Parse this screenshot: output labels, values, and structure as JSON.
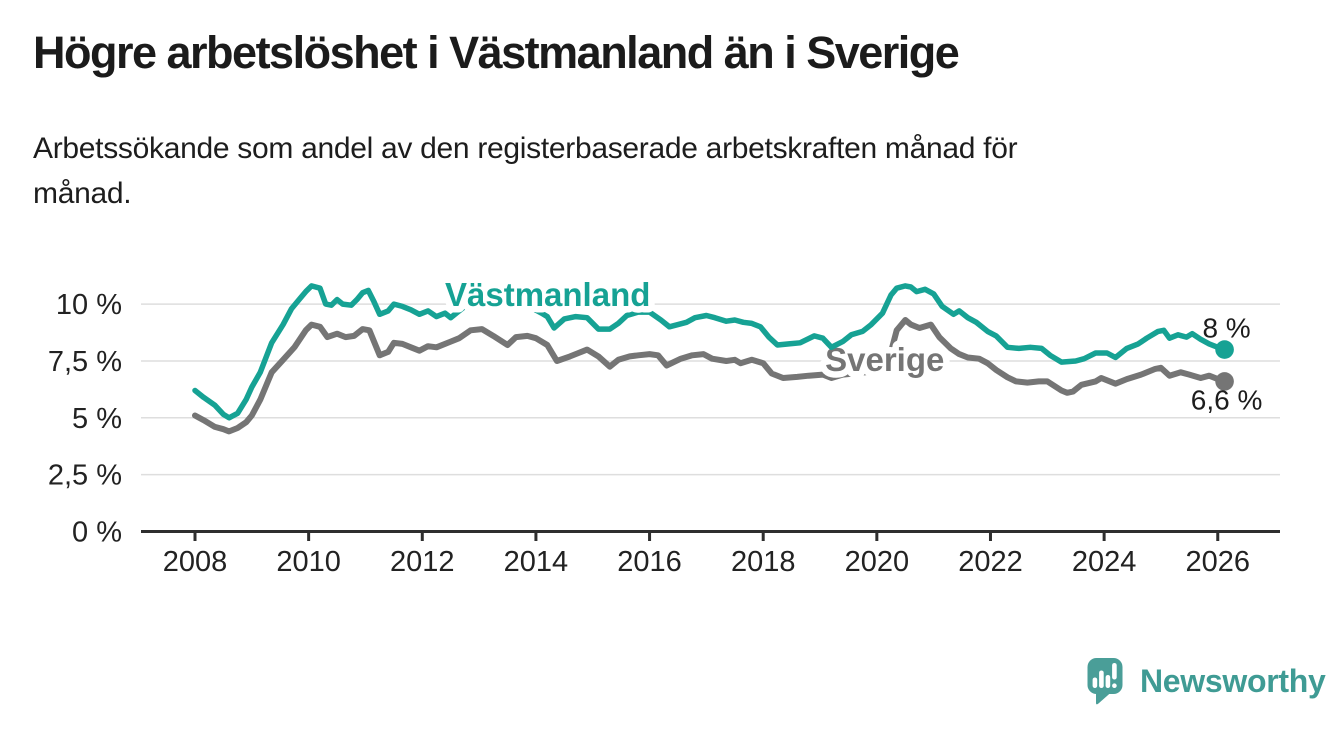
{
  "header": {
    "title": "Högre arbetslöshet i Västmanland än i Sverige",
    "subtitle_lines": [
      "Arbetssökande som andel av den registerbaserade arbetskraften månad för",
      "månad."
    ]
  },
  "branding": {
    "logo_text": "Newsworthy",
    "logo_icon": "newsworthy-chart-bubble-icon",
    "logo_color": "#4a9e98",
    "logo_text_color": "#3f9b94"
  },
  "chart_data": {
    "type": "line",
    "title": "Högre arbetslöshet i Västmanland än i Sverige",
    "xlabel": "",
    "ylabel": "",
    "grid": "horizontal",
    "legend_position": "inline-labels",
    "xlim": [
      2007.1,
      2027.1
    ],
    "ylim": [
      0,
      11.5
    ],
    "colors": {
      "grid": "#dedede",
      "axis": "#2e2e2e",
      "tick_text": "#222222",
      "annotation_text": "#1d1d1d"
    },
    "y_ticks": [
      {
        "value": 10,
        "label": "10 %"
      },
      {
        "value": 7.5,
        "label": "7,5 %"
      },
      {
        "value": 5,
        "label": "5 %"
      },
      {
        "value": 2.5,
        "label": "2,5 %"
      },
      {
        "value": 0,
        "label": "0 %"
      }
    ],
    "x_ticks": [
      {
        "value": 2008,
        "label": "2008"
      },
      {
        "value": 2010,
        "label": "2010"
      },
      {
        "value": 2012,
        "label": "2012"
      },
      {
        "value": 2014,
        "label": "2014"
      },
      {
        "value": 2016,
        "label": "2016"
      },
      {
        "value": 2018,
        "label": "2018"
      },
      {
        "value": 2020,
        "label": "2020"
      },
      {
        "value": 2022,
        "label": "2022"
      },
      {
        "value": 2024,
        "label": "2024"
      },
      {
        "value": 2026,
        "label": "2026"
      }
    ],
    "series": [
      {
        "name": "Västmanland",
        "color": "#16a294",
        "end_label": "8 %",
        "end_label_position": "above",
        "name_label_anchor": [
          2012.4,
          9.92
        ],
        "points": [
          [
            2008.0,
            6.2
          ],
          [
            2008.15,
            5.9
          ],
          [
            2008.35,
            5.55
          ],
          [
            2008.5,
            5.15
          ],
          [
            2008.6,
            5.0
          ],
          [
            2008.75,
            5.2
          ],
          [
            2008.9,
            5.8
          ],
          [
            2009.0,
            6.35
          ],
          [
            2009.15,
            7.0
          ],
          [
            2009.35,
            8.3
          ],
          [
            2009.55,
            9.1
          ],
          [
            2009.7,
            9.8
          ],
          [
            2009.85,
            10.25
          ],
          [
            2009.95,
            10.55
          ],
          [
            2010.05,
            10.8
          ],
          [
            2010.2,
            10.7
          ],
          [
            2010.3,
            10.0
          ],
          [
            2010.4,
            9.95
          ],
          [
            2010.5,
            10.2
          ],
          [
            2010.6,
            10.0
          ],
          [
            2010.75,
            9.95
          ],
          [
            2010.85,
            10.2
          ],
          [
            2010.95,
            10.5
          ],
          [
            2011.05,
            10.6
          ],
          [
            2011.15,
            10.1
          ],
          [
            2011.25,
            9.55
          ],
          [
            2011.4,
            9.7
          ],
          [
            2011.5,
            10.0
          ],
          [
            2011.65,
            9.9
          ],
          [
            2011.8,
            9.75
          ],
          [
            2011.95,
            9.55
          ],
          [
            2012.1,
            9.7
          ],
          [
            2012.25,
            9.45
          ],
          [
            2012.4,
            9.6
          ],
          [
            2012.5,
            9.4
          ],
          [
            2012.65,
            9.7
          ],
          [
            2012.8,
            10.0
          ],
          [
            2012.95,
            10.25
          ],
          [
            2013.1,
            10.35
          ],
          [
            2013.25,
            10.1
          ],
          [
            2013.45,
            9.9
          ],
          [
            2013.6,
            10.05
          ],
          [
            2013.8,
            9.9
          ],
          [
            2013.95,
            9.8
          ],
          [
            2014.1,
            9.6
          ],
          [
            2014.2,
            9.45
          ],
          [
            2014.32,
            8.95
          ],
          [
            2014.5,
            9.35
          ],
          [
            2014.7,
            9.45
          ],
          [
            2014.9,
            9.4
          ],
          [
            2015.1,
            8.9
          ],
          [
            2015.3,
            8.9
          ],
          [
            2015.45,
            9.15
          ],
          [
            2015.6,
            9.5
          ],
          [
            2015.8,
            9.65
          ],
          [
            2016.0,
            9.65
          ],
          [
            2016.2,
            9.3
          ],
          [
            2016.35,
            9.0
          ],
          [
            2016.5,
            9.1
          ],
          [
            2016.65,
            9.2
          ],
          [
            2016.8,
            9.4
          ],
          [
            2017.0,
            9.5
          ],
          [
            2017.15,
            9.4
          ],
          [
            2017.35,
            9.25
          ],
          [
            2017.5,
            9.3
          ],
          [
            2017.65,
            9.2
          ],
          [
            2017.8,
            9.15
          ],
          [
            2017.95,
            9.0
          ],
          [
            2018.1,
            8.55
          ],
          [
            2018.25,
            8.2
          ],
          [
            2018.45,
            8.25
          ],
          [
            2018.65,
            8.3
          ],
          [
            2018.9,
            8.6
          ],
          [
            2019.05,
            8.5
          ],
          [
            2019.2,
            8.1
          ],
          [
            2019.4,
            8.35
          ],
          [
            2019.55,
            8.65
          ],
          [
            2019.75,
            8.8
          ],
          [
            2019.9,
            9.1
          ],
          [
            2020.1,
            9.6
          ],
          [
            2020.25,
            10.4
          ],
          [
            2020.35,
            10.7
          ],
          [
            2020.5,
            10.8
          ],
          [
            2020.6,
            10.75
          ],
          [
            2020.7,
            10.55
          ],
          [
            2020.85,
            10.65
          ],
          [
            2021.0,
            10.45
          ],
          [
            2021.15,
            9.9
          ],
          [
            2021.35,
            9.55
          ],
          [
            2021.45,
            9.7
          ],
          [
            2021.6,
            9.4
          ],
          [
            2021.75,
            9.2
          ],
          [
            2021.95,
            8.8
          ],
          [
            2022.1,
            8.6
          ],
          [
            2022.3,
            8.1
          ],
          [
            2022.5,
            8.05
          ],
          [
            2022.7,
            8.1
          ],
          [
            2022.9,
            8.05
          ],
          [
            2023.05,
            7.75
          ],
          [
            2023.25,
            7.45
          ],
          [
            2023.5,
            7.5
          ],
          [
            2023.65,
            7.6
          ],
          [
            2023.85,
            7.85
          ],
          [
            2024.05,
            7.85
          ],
          [
            2024.2,
            7.65
          ],
          [
            2024.4,
            8.05
          ],
          [
            2024.6,
            8.25
          ],
          [
            2024.75,
            8.5
          ],
          [
            2024.95,
            8.8
          ],
          [
            2025.05,
            8.85
          ],
          [
            2025.15,
            8.5
          ],
          [
            2025.3,
            8.65
          ],
          [
            2025.45,
            8.55
          ],
          [
            2025.55,
            8.7
          ],
          [
            2025.7,
            8.45
          ],
          [
            2025.85,
            8.25
          ],
          [
            2026.0,
            8.1
          ],
          [
            2026.12,
            8.0
          ]
        ]
      },
      {
        "name": "Sverige",
        "color": "#757575",
        "end_label": "6,6 %",
        "end_label_position": "below",
        "name_label_anchor": [
          2019.09,
          7.06
        ],
        "points": [
          [
            2008.0,
            5.1
          ],
          [
            2008.15,
            4.9
          ],
          [
            2008.35,
            4.6
          ],
          [
            2008.5,
            4.5
          ],
          [
            2008.6,
            4.4
          ],
          [
            2008.75,
            4.55
          ],
          [
            2008.9,
            4.8
          ],
          [
            2009.0,
            5.1
          ],
          [
            2009.15,
            5.8
          ],
          [
            2009.35,
            7.0
          ],
          [
            2009.55,
            7.55
          ],
          [
            2009.75,
            8.1
          ],
          [
            2009.95,
            8.85
          ],
          [
            2010.05,
            9.1
          ],
          [
            2010.2,
            9.0
          ],
          [
            2010.33,
            8.55
          ],
          [
            2010.5,
            8.7
          ],
          [
            2010.65,
            8.55
          ],
          [
            2010.8,
            8.6
          ],
          [
            2010.95,
            8.9
          ],
          [
            2011.07,
            8.85
          ],
          [
            2011.25,
            7.75
          ],
          [
            2011.4,
            7.9
          ],
          [
            2011.5,
            8.3
          ],
          [
            2011.65,
            8.25
          ],
          [
            2011.8,
            8.1
          ],
          [
            2011.95,
            7.95
          ],
          [
            2012.1,
            8.15
          ],
          [
            2012.25,
            8.1
          ],
          [
            2012.5,
            8.35
          ],
          [
            2012.65,
            8.5
          ],
          [
            2012.85,
            8.85
          ],
          [
            2013.05,
            8.9
          ],
          [
            2013.25,
            8.6
          ],
          [
            2013.5,
            8.2
          ],
          [
            2013.65,
            8.55
          ],
          [
            2013.85,
            8.6
          ],
          [
            2014.0,
            8.5
          ],
          [
            2014.2,
            8.2
          ],
          [
            2014.37,
            7.5
          ],
          [
            2014.6,
            7.7
          ],
          [
            2014.75,
            7.85
          ],
          [
            2014.9,
            8.0
          ],
          [
            2015.1,
            7.7
          ],
          [
            2015.3,
            7.25
          ],
          [
            2015.45,
            7.55
          ],
          [
            2015.65,
            7.7
          ],
          [
            2015.8,
            7.75
          ],
          [
            2016.0,
            7.8
          ],
          [
            2016.15,
            7.75
          ],
          [
            2016.3,
            7.3
          ],
          [
            2016.55,
            7.6
          ],
          [
            2016.75,
            7.75
          ],
          [
            2016.95,
            7.8
          ],
          [
            2017.1,
            7.6
          ],
          [
            2017.35,
            7.5
          ],
          [
            2017.5,
            7.55
          ],
          [
            2017.6,
            7.4
          ],
          [
            2017.8,
            7.55
          ],
          [
            2018.0,
            7.4
          ],
          [
            2018.15,
            6.95
          ],
          [
            2018.35,
            6.75
          ],
          [
            2018.6,
            6.8
          ],
          [
            2018.8,
            6.85
          ],
          [
            2019.05,
            6.9
          ],
          [
            2019.2,
            6.75
          ],
          [
            2019.4,
            6.9
          ],
          [
            2019.6,
            6.95
          ],
          [
            2019.8,
            7.0
          ],
          [
            2019.95,
            7.1
          ],
          [
            2020.1,
            7.4
          ],
          [
            2020.25,
            7.9
          ],
          [
            2020.35,
            8.85
          ],
          [
            2020.5,
            9.3
          ],
          [
            2020.6,
            9.1
          ],
          [
            2020.75,
            8.95
          ],
          [
            2020.95,
            9.1
          ],
          [
            2021.1,
            8.55
          ],
          [
            2021.3,
            8.05
          ],
          [
            2021.45,
            7.8
          ],
          [
            2021.6,
            7.65
          ],
          [
            2021.8,
            7.6
          ],
          [
            2021.95,
            7.4
          ],
          [
            2022.1,
            7.1
          ],
          [
            2022.3,
            6.78
          ],
          [
            2022.45,
            6.6
          ],
          [
            2022.65,
            6.55
          ],
          [
            2022.85,
            6.6
          ],
          [
            2023.0,
            6.6
          ],
          [
            2023.25,
            6.2
          ],
          [
            2023.35,
            6.1
          ],
          [
            2023.45,
            6.15
          ],
          [
            2023.6,
            6.45
          ],
          [
            2023.85,
            6.6
          ],
          [
            2023.95,
            6.75
          ],
          [
            2024.2,
            6.5
          ],
          [
            2024.4,
            6.7
          ],
          [
            2024.65,
            6.9
          ],
          [
            2024.9,
            7.15
          ],
          [
            2025.0,
            7.2
          ],
          [
            2025.15,
            6.85
          ],
          [
            2025.35,
            7.0
          ],
          [
            2025.5,
            6.9
          ],
          [
            2025.7,
            6.75
          ],
          [
            2025.85,
            6.85
          ],
          [
            2026.0,
            6.7
          ],
          [
            2026.12,
            6.6
          ]
        ]
      }
    ]
  }
}
